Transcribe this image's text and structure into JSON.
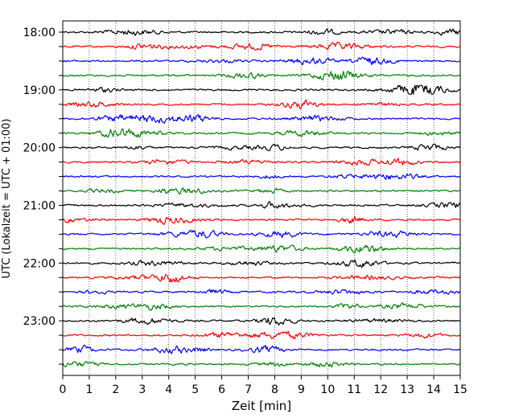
{
  "chart_data": {
    "type": "line",
    "title": "",
    "xlabel": "Zeit  [min]",
    "ylabel": "UTC (Lokalzeit = UTC + 01:00)",
    "xlim": [
      0,
      15
    ],
    "x_ticks": [
      0,
      1,
      2,
      3,
      4,
      5,
      6,
      7,
      8,
      9,
      10,
      11,
      12,
      13,
      14,
      15
    ],
    "y_tick_labels": [
      "18:00",
      "19:00",
      "20:00",
      "21:00",
      "22:00",
      "23:00"
    ],
    "grid": "vertical dotted lines at each minute",
    "trace_interval_minutes": 15,
    "trace_start_times": [
      "18:00",
      "18:15",
      "18:30",
      "18:45",
      "19:00",
      "19:15",
      "19:30",
      "19:45",
      "20:00",
      "20:15",
      "20:30",
      "20:45",
      "21:00",
      "21:15",
      "21:30",
      "21:45",
      "22:00",
      "22:15",
      "22:30",
      "22:45",
      "23:00",
      "23:15",
      "23:30",
      "23:45"
    ],
    "trace_colors": [
      "#000000",
      "#ff0000",
      "#0000ff",
      "#008000"
    ],
    "series_description": "seismogram helicorder: one noise trace per 15-minute row, colors cycle black, red, blue, green"
  }
}
